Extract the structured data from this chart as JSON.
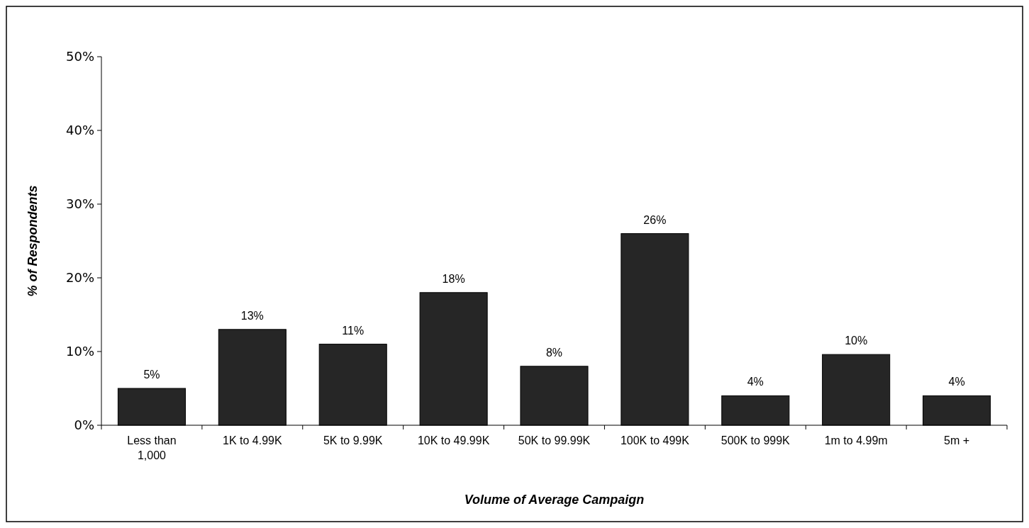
{
  "chart_data": {
    "type": "bar",
    "xlabel": "Volume of Average Campaign",
    "ylabel": "% of Respondents",
    "categories": [
      "Less than 1,000",
      "1K to 4.99K",
      "5K to 9.99K",
      "10K to 49.99K",
      "50K to 99.99K",
      "100K to 499K",
      "500K to 999K",
      "1m to 4.99m",
      "5m +"
    ],
    "values": [
      5,
      13,
      11,
      18,
      8,
      26,
      4,
      9.6,
      4
    ],
    "value_labels": [
      "5%",
      "13%",
      "11%",
      "18%",
      "8%",
      "26%",
      "4%",
      "10%",
      "4%"
    ],
    "color": "#262626",
    "ylim": [
      0,
      50
    ],
    "yticks": [
      {
        "value": 0,
        "label": "0%"
      },
      {
        "value": 10,
        "label": "10%"
      },
      {
        "value": 20,
        "label": "20%"
      },
      {
        "value": 30,
        "label": "30%"
      },
      {
        "value": 40,
        "label": "40%"
      },
      {
        "value": 50,
        "label": "50%"
      }
    ],
    "grid": false
  }
}
